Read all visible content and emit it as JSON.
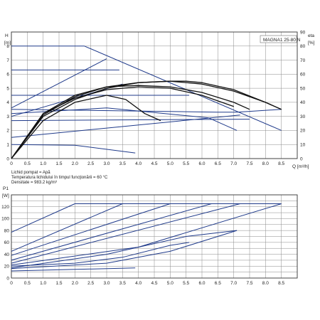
{
  "chart_data": [
    {
      "type": "line",
      "title": "MAGNA1 25-80 N",
      "xlabel": "Q [m³/h]",
      "ylabel_left": "H",
      "ylabel_left_unit": "[m]",
      "ylabel_right": "eta",
      "ylabel_right_unit": "[%]",
      "xlim": [
        0,
        9
      ],
      "ylim": [
        0,
        9
      ],
      "y2lim": [
        0,
        90
      ],
      "x_ticks": [
        "0",
        "0.5",
        "1.0",
        "1.5",
        "2.0",
        "2.5",
        "3.0",
        "3.5",
        "4.0",
        "4.5",
        "5.0",
        "5.5",
        "6.0",
        "6.5",
        "7.0",
        "7.5",
        "8.0",
        "8.5"
      ],
      "y_ticks": [
        "0",
        "1",
        "2",
        "3",
        "4",
        "5",
        "6",
        "7",
        "8"
      ],
      "y2_ticks": [
        "0",
        "10",
        "20",
        "30",
        "40",
        "50",
        "60",
        "70",
        "80",
        "90"
      ],
      "grid": true,
      "notes": [
        "Lichid pompat = Apă",
        "Temperatura lichidului în timpul funcţionării = 60 °C",
        "Densitate = 983.2 kg/m³"
      ],
      "series": [
        {
          "kind": "head",
          "points": [
            [
              0,
              8
            ],
            [
              2.3,
              8
            ],
            [
              8.5,
              2
            ]
          ]
        },
        {
          "kind": "head",
          "points": [
            [
              0,
              6.3
            ],
            [
              3.4,
              6.3
            ]
          ]
        },
        {
          "kind": "head",
          "points": [
            [
              0,
              4.5
            ],
            [
              5.6,
              4.5
            ]
          ]
        },
        {
          "kind": "head",
          "points": [
            [
              0,
              3.5
            ],
            [
              6.5,
              3.3
            ],
            [
              7.1,
              3.3
            ],
            [
              8.5,
              3.5
            ]
          ]
        },
        {
          "kind": "head",
          "points": [
            [
              0,
              2.7
            ],
            [
              7.5,
              2.8
            ]
          ]
        },
        {
          "kind": "head",
          "points": [
            [
              0,
              3.2
            ],
            [
              3,
              3.6
            ],
            [
              6.2,
              2.9
            ],
            [
              7.1,
              2.0
            ]
          ]
        },
        {
          "kind": "head",
          "points": [
            [
              0,
              1.0
            ],
            [
              2,
              0.95
            ],
            [
              3.9,
              0.4
            ]
          ]
        },
        {
          "kind": "head",
          "points": [
            [
              0,
              1.5
            ],
            [
              7.2,
              3.1
            ]
          ]
        },
        {
          "kind": "head",
          "points": [
            [
              0,
              3.0
            ],
            [
              3.5,
              5.3
            ]
          ]
        },
        {
          "kind": "head",
          "points": [
            [
              0,
              3.6
            ],
            [
              3,
              7.1
            ]
          ]
        },
        {
          "kind": "eta",
          "points": [
            [
              0,
              0
            ],
            [
              1,
              27
            ],
            [
              2,
              40
            ],
            [
              3,
              45
            ],
            [
              3.6,
              42
            ],
            [
              4.2,
              32
            ],
            [
              4.7,
              27
            ]
          ]
        },
        {
          "kind": "eta",
          "points": [
            [
              0,
              0
            ],
            [
              1,
              32
            ],
            [
              2,
              43
            ],
            [
              3,
              49
            ],
            [
              4,
              51
            ],
            [
              5,
              50
            ],
            [
              6,
              45
            ],
            [
              7,
              37
            ]
          ]
        },
        {
          "kind": "eta",
          "points": [
            [
              0,
              0
            ],
            [
              1,
              32
            ],
            [
              2,
              45
            ],
            [
              3,
              51
            ],
            [
              4,
              52
            ],
            [
              5,
              51
            ],
            [
              6,
              47
            ],
            [
              7,
              40
            ],
            [
              7.5,
              35
            ]
          ]
        },
        {
          "kind": "eta",
          "points": [
            [
              0,
              0
            ],
            [
              1,
              31
            ],
            [
              2,
              44
            ],
            [
              3,
              51
            ],
            [
              4,
              54
            ],
            [
              5,
              55
            ],
            [
              6,
              53
            ],
            [
              7,
              48
            ],
            [
              8,
              40
            ],
            [
              8.5,
              35
            ]
          ]
        },
        {
          "kind": "eta",
          "points": [
            [
              0,
              0
            ],
            [
              1,
              30
            ],
            [
              2,
              42
            ],
            [
              3,
              50
            ],
            [
              4,
              54
            ],
            [
              5,
              55
            ],
            [
              5.5,
              55
            ],
            [
              6,
              54
            ],
            [
              7,
              49
            ],
            [
              8,
              40
            ],
            [
              8.5,
              35
            ]
          ]
        }
      ]
    },
    {
      "type": "line",
      "ylabel": "P1",
      "ylabel_unit": "[W]",
      "xlim": [
        0,
        9
      ],
      "ylim": [
        0,
        140
      ],
      "x_ticks": [
        "0",
        "0.5",
        "1.0",
        "1.5",
        "2.0",
        "2.5",
        "3.0",
        "3.5",
        "4.0",
        "4.5",
        "5.0",
        "5.5",
        "6.0",
        "6.5",
        "7.0",
        "7.5",
        "8.0",
        "8.5"
      ],
      "y_ticks": [
        "0",
        "20",
        "40",
        "60",
        "80",
        "100",
        "120"
      ],
      "grid": true,
      "series": [
        {
          "kind": "power",
          "points": [
            [
              0,
              77
            ],
            [
              2,
              125
            ],
            [
              8.5,
              125
            ]
          ]
        },
        {
          "kind": "power",
          "points": [
            [
              0,
              45
            ],
            [
              3.5,
              125
            ]
          ]
        },
        {
          "kind": "power",
          "points": [
            [
              0,
              38
            ],
            [
              5,
              125
            ]
          ]
        },
        {
          "kind": "power",
          "points": [
            [
              0,
              30
            ],
            [
              6.3,
              125
            ]
          ]
        },
        {
          "kind": "power",
          "points": [
            [
              0,
              25
            ],
            [
              7.2,
              125
            ]
          ]
        },
        {
          "kind": "power",
          "points": [
            [
              0,
              22
            ],
            [
              4,
              52
            ],
            [
              8.5,
              125
            ]
          ]
        },
        {
          "kind": "power",
          "points": [
            [
              0,
              17
            ],
            [
              3,
              40
            ],
            [
              5.5,
              70
            ],
            [
              7.1,
              80
            ]
          ]
        },
        {
          "kind": "power",
          "points": [
            [
              0,
              16
            ],
            [
              3,
              25
            ],
            [
              5,
              45
            ],
            [
              7.1,
              80
            ]
          ]
        },
        {
          "kind": "power",
          "points": [
            [
              0,
              12
            ],
            [
              3.9,
              17
            ]
          ]
        },
        {
          "kind": "power",
          "points": [
            [
              0,
              20
            ],
            [
              2,
              25
            ],
            [
              3.5,
              35
            ],
            [
              5,
              55
            ],
            [
              5.6,
              60
            ]
          ]
        }
      ]
    }
  ]
}
